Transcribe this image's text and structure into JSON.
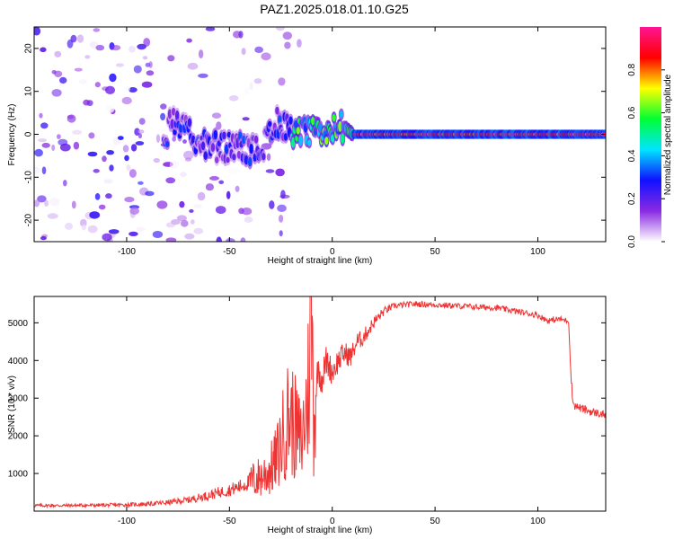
{
  "title": "PAZ1.2025.018.01.10.G25",
  "chart_data": [
    {
      "type": "heatmap",
      "xlabel": "Height of straight line (km)",
      "ylabel": "Frequency (Hz)",
      "xlim": [
        -145,
        133
      ],
      "ylim": [
        -25,
        25
      ],
      "x_ticks": [
        -100,
        -50,
        0,
        50,
        100
      ],
      "y_ticks": [
        -20,
        -10,
        0,
        10,
        20
      ],
      "colorbar": {
        "label": "Normalized spectral amplitude",
        "range": [
          0,
          1
        ],
        "ticks": [
          0,
          0.2,
          0.4,
          0.6,
          0.8
        ],
        "tick_labels": [
          "0.0",
          "0.2",
          "0.4",
          "0.6",
          "0.8"
        ],
        "colors": [
          "#ffffff",
          "#8a2be2",
          "#1010ff",
          "#00e5ff",
          "#00ff33",
          "#ffff00",
          "#ff0000",
          "#ff1493"
        ]
      },
      "ridge": {
        "description_points": [
          {
            "x": -80,
            "y": 5
          },
          {
            "x": -70,
            "y": 0
          },
          {
            "x": -60,
            "y": -3
          },
          {
            "x": -45,
            "y": -3
          },
          {
            "x": -35,
            "y": -4
          },
          {
            "x": -28,
            "y": 3
          },
          {
            "x": -20,
            "y": 1
          },
          {
            "x": -15,
            "y": 0
          },
          {
            "x": -5,
            "y": 0.5
          },
          {
            "x": 5,
            "y": 2
          },
          {
            "x": 10,
            "y": 0
          },
          {
            "x": 20,
            "y": 0
          },
          {
            "x": 50,
            "y": 0
          },
          {
            "x": 100,
            "y": 0
          },
          {
            "x": 133,
            "y": 0
          }
        ]
      }
    },
    {
      "type": "line",
      "xlabel": "Height of straight line (km)",
      "ylabel": "SNR (10 * v/v)",
      "xlim": [
        -145,
        133
      ],
      "ylim": [
        0,
        5700
      ],
      "x_ticks": [
        -100,
        -50,
        0,
        50,
        100
      ],
      "y_ticks": [
        1000,
        2000,
        3000,
        4000,
        5000
      ],
      "color": "#ee3333",
      "x": [
        -145,
        -130,
        -110,
        -100,
        -90,
        -80,
        -70,
        -60,
        -55,
        -50,
        -45,
        -40,
        -35,
        -30,
        -27,
        -24,
        -21,
        -18,
        -15,
        -12,
        -10,
        -9,
        -7,
        -5,
        -3,
        0,
        3,
        6,
        9,
        12,
        15,
        20,
        25,
        30,
        40,
        50,
        60,
        70,
        80,
        90,
        100,
        105,
        110,
        115,
        116,
        117,
        118,
        120,
        125,
        133
      ],
      "y": [
        150,
        150,
        160,
        170,
        190,
        230,
        300,
        420,
        500,
        560,
        650,
        780,
        900,
        1100,
        1400,
        2000,
        2600,
        2200,
        1800,
        3000,
        5300,
        2400,
        3800,
        3500,
        4000,
        3700,
        4000,
        4200,
        4100,
        4500,
        4600,
        5000,
        5300,
        5450,
        5500,
        5480,
        5450,
        5420,
        5400,
        5300,
        5200,
        5050,
        5100,
        5050,
        3700,
        2900,
        2800,
        2750,
        2650,
        2550
      ]
    }
  ]
}
